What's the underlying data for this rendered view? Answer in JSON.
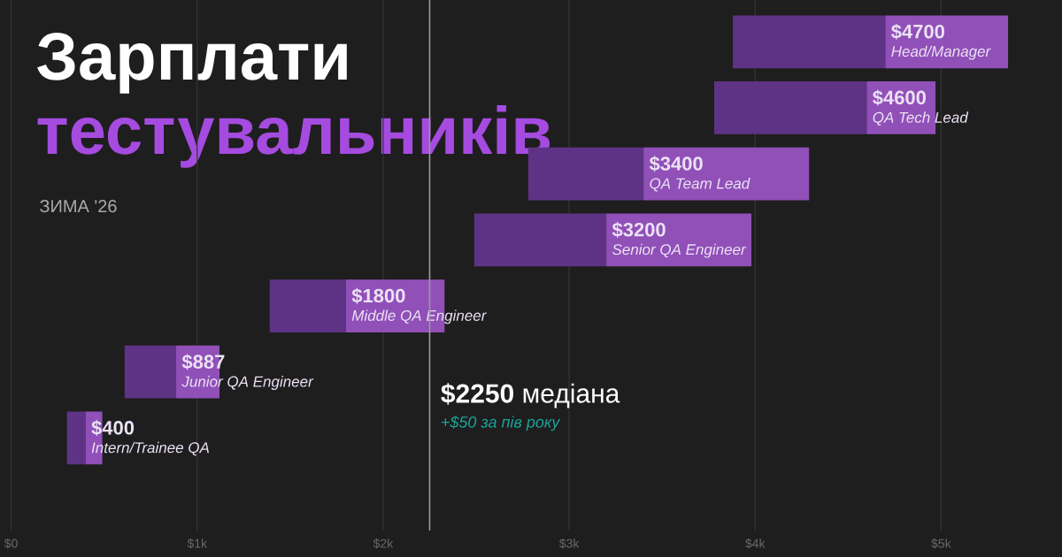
{
  "chart_data": {
    "type": "bar",
    "orientation": "horizontal",
    "stacked": true,
    "title": "Зарплати",
    "subtitle": "тестувальників",
    "categories": [
      "Head/Manager",
      "QA Tech Lead",
      "QA Team Lead",
      "Senior QA Engineer",
      "Middle QA Engineer",
      "Junior QA Engineer",
      "Intern/Trainee QA"
    ],
    "series": [
      {
        "color": "#5e3385",
        "base": [
          3880,
          3780,
          2780,
          2490,
          1390,
          610,
          300
        ],
        "values": [
          820,
          820,
          620,
          710,
          410,
          277,
          100
        ]
      },
      {
        "color": "#9050b8",
        "values": [
          660,
          370,
          890,
          780,
          530,
          233,
          90
        ]
      }
    ],
    "xlim": [
      -60,
      5650
    ],
    "xticks": [
      {
        "value": 0,
        "label": "$0"
      },
      {
        "value": 1000,
        "label": "$1k"
      },
      {
        "value": 2000,
        "label": "$2k"
      },
      {
        "value": 3000,
        "label": "$3k"
      },
      {
        "value": 4000,
        "label": "$4k"
      },
      {
        "value": 5000,
        "label": "$5k"
      }
    ],
    "grid": "x",
    "ref_lines": [
      {
        "axis": "x",
        "value": 2250,
        "label": "**$2250** медіана",
        "color": "#9a9a9a"
      }
    ],
    "annotations": [
      "ЗИМА '26",
      "+$50 за пів року",
      "$4700",
      "$4600",
      "$3400",
      "$3200",
      "$1800",
      "$887",
      "$400"
    ]
  }
}
